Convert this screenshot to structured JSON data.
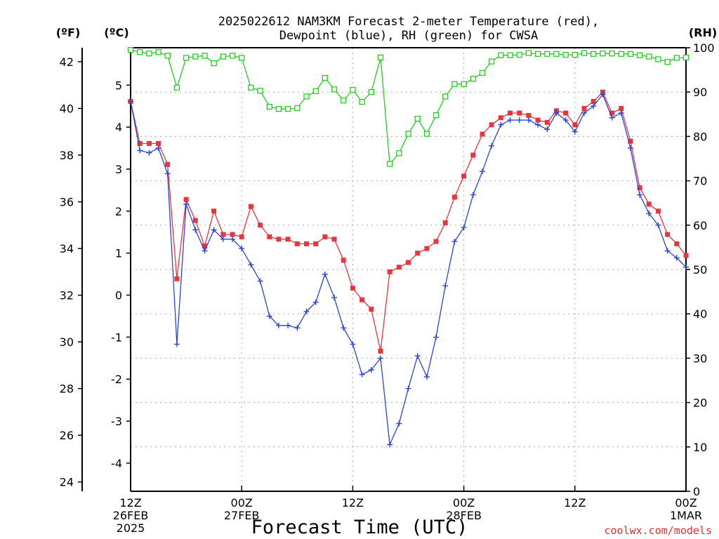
{
  "chart_data": {
    "type": "line",
    "title_lines": [
      "2025022612 NAM3KM Forecast 2-meter Temperature (red),",
      "Dewpoint (blue), RH (green) for CWSA"
    ],
    "xlabel": "Forecast Time (UTC)",
    "watermark": "coolwx.com/models",
    "axis_units": {
      "fahrenheit": "(ºF)",
      "celsius": "(ºC)",
      "rh": "(RH)"
    },
    "x_forecast_hours": [
      0,
      1,
      2,
      3,
      4,
      5,
      6,
      7,
      8,
      9,
      10,
      11,
      12,
      13,
      14,
      15,
      16,
      17,
      18,
      19,
      20,
      21,
      22,
      23,
      24,
      25,
      26,
      27,
      28,
      29,
      30,
      31,
      32,
      33,
      34,
      35,
      36,
      37,
      38,
      39,
      40,
      41,
      42,
      43,
      44,
      45,
      46,
      47,
      48,
      49,
      50,
      51,
      52,
      53,
      54,
      55,
      56,
      57,
      58,
      59,
      60
    ],
    "xlim_hours": [
      0,
      60
    ],
    "x_ticks": [
      {
        "hour": 0,
        "lines": [
          "12Z",
          "26FEB",
          "2025"
        ]
      },
      {
        "hour": 12,
        "lines": [
          "00Z",
          "27FEB"
        ]
      },
      {
        "hour": 24,
        "lines": [
          "12Z"
        ]
      },
      {
        "hour": 36,
        "lines": [
          "00Z",
          "28FEB"
        ]
      },
      {
        "hour": 48,
        "lines": [
          "12Z"
        ]
      },
      {
        "hour": 60,
        "lines": [
          "00Z",
          "1MAR"
        ]
      }
    ],
    "y_left_f": {
      "ylim": [
        23.6,
        42.6
      ],
      "ticks": [
        24,
        26,
        28,
        30,
        32,
        34,
        36,
        38,
        40,
        42
      ]
    },
    "y_left_c": {
      "ylim": [
        -4.67,
        5.89
      ],
      "ticks": [
        -4,
        -3,
        -2,
        -1,
        0,
        1,
        2,
        3,
        4,
        5
      ]
    },
    "y_right_rh": {
      "ylim": [
        0,
        100
      ],
      "ticks": [
        0,
        10,
        20,
        30,
        40,
        50,
        60,
        70,
        80,
        90,
        100
      ]
    },
    "grid": true,
    "series": [
      {
        "name": "Temperature",
        "units": "degF",
        "axis": "left_f",
        "color": "#e8343c",
        "marker": "filled-square",
        "values": [
          40.3,
          38.5,
          38.5,
          38.5,
          37.6,
          32.7,
          36.1,
          35.2,
          34.1,
          35.6,
          34.6,
          34.6,
          34.5,
          35.8,
          35.0,
          34.5,
          34.4,
          34.4,
          34.2,
          34.2,
          34.2,
          34.5,
          34.4,
          33.5,
          32.3,
          31.8,
          31.4,
          29.6,
          33.0,
          33.2,
          33.4,
          33.8,
          34.0,
          34.3,
          35.1,
          36.2,
          37.1,
          38.0,
          38.9,
          39.3,
          39.6,
          39.8,
          39.8,
          39.7,
          39.5,
          39.4,
          39.9,
          39.8,
          39.3,
          40.0,
          40.3,
          40.7,
          39.8,
          40.0,
          38.6,
          36.6,
          35.9,
          35.6,
          34.6,
          34.2,
          33.7
        ]
      },
      {
        "name": "Dewpoint",
        "units": "degF",
        "axis": "left_f",
        "color": "#2a44d8",
        "marker": "plus",
        "values": [
          40.3,
          38.2,
          38.1,
          38.3,
          37.2,
          29.9,
          35.9,
          34.8,
          33.9,
          34.8,
          34.4,
          34.4,
          34.0,
          33.3,
          32.6,
          31.1,
          30.7,
          30.7,
          30.6,
          31.3,
          31.7,
          32.9,
          31.9,
          30.6,
          29.9,
          28.6,
          28.8,
          29.3,
          25.6,
          26.5,
          28.0,
          29.4,
          28.5,
          30.2,
          32.4,
          34.3,
          34.9,
          36.3,
          37.3,
          38.4,
          39.3,
          39.5,
          39.5,
          39.5,
          39.3,
          39.1,
          39.8,
          39.5,
          39.0,
          39.8,
          40.1,
          40.6,
          39.6,
          39.8,
          38.3,
          36.3,
          35.5,
          35.0,
          33.9,
          33.6,
          33.2
        ]
      },
      {
        "name": "RH",
        "units": "%",
        "axis": "right_rh",
        "color": "#22cc22",
        "marker": "open-square",
        "values": [
          99.5,
          99.0,
          98.7,
          99.0,
          98.2,
          91.0,
          97.7,
          98.0,
          98.2,
          96.5,
          98.0,
          98.2,
          97.7,
          91.0,
          90.3,
          86.7,
          86.2,
          86.2,
          86.4,
          89.0,
          90.2,
          93.2,
          90.6,
          88.1,
          90.5,
          87.8,
          90.0,
          97.8,
          73.8,
          76.2,
          80.6,
          84.0,
          80.6,
          84.8,
          89.0,
          91.8,
          91.8,
          93.0,
          94.3,
          96.9,
          98.3,
          98.3,
          98.4,
          98.8,
          98.6,
          98.6,
          98.6,
          98.4,
          98.4,
          98.8,
          98.6,
          98.7,
          98.7,
          98.6,
          98.6,
          98.3,
          98.0,
          97.4,
          96.8,
          97.7,
          97.8
        ]
      }
    ]
  }
}
